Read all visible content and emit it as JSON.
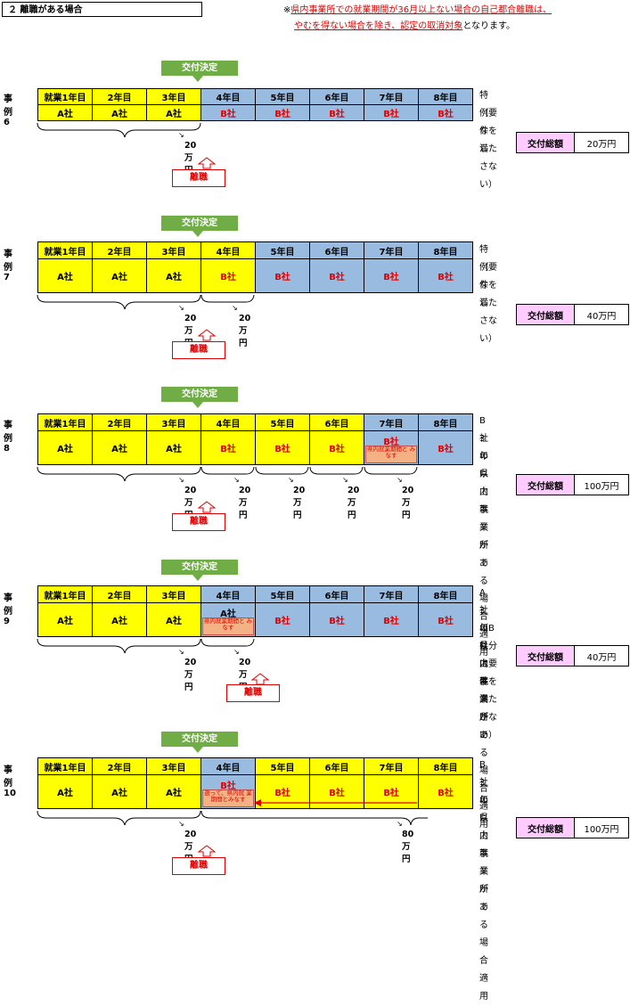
{
  "header": {
    "title": "２ 離職がある場合",
    "note_prefix": "※",
    "note_red1": "県内事業所での就業期間が36月以上ない場合の自己都合離職は、",
    "note_red2": "やむを得ない場合を除き、認定の取消対象",
    "note_suffix": "となります。"
  },
  "badge_label": "交付決定",
  "rishoku_label": "離職",
  "total_label": "交付総額",
  "years": [
    "就業1年目",
    "2年目",
    "3年目",
    "4年目",
    "5年目",
    "6年目",
    "7年目",
    "8年目"
  ],
  "cases": [
    {
      "label": "事例6",
      "companies": [
        "A社",
        "A社",
        "A社",
        "B社",
        "B社",
        "B社",
        "B社",
        "B社"
      ],
      "side": [
        "特例なし",
        "（要件を満たさない）"
      ],
      "amounts": [
        "20万円"
      ],
      "total": "20万円"
    },
    {
      "label": "事例7",
      "companies": [
        "A社",
        "A社",
        "A社",
        "B社",
        "B社",
        "B社",
        "B社",
        "B社"
      ],
      "side": [
        "特例なし",
        "（要件を満たさない）"
      ],
      "amounts": [
        "20万円",
        "20万円"
      ],
      "total": "40万円"
    },
    {
      "label": "事例8",
      "companies": [
        "A社",
        "A社",
        "A社",
        "B社",
        "B社",
        "B社",
        "B社",
        "B社"
      ],
      "sub_note": "県内就業期間と みなす",
      "side": [
        "B社の県内事業所で",
        "3年以上就業がある場合適用"
      ],
      "amounts": [
        "20万円",
        "20万円",
        "20万円",
        "20万円",
        "20万円"
      ],
      "total": "100万円"
    },
    {
      "label": "事例9",
      "companies": [
        "A社",
        "A社",
        "A社",
        "A社",
        "B社",
        "B社",
        "B社",
        "B社"
      ],
      "sub_note": "県内就業期間と みなす",
      "side": [
        "A社の県内事業所で",
        "3年以上就業がある場合適用",
        "（B社分は要件を満たさない）"
      ],
      "amounts": [
        "20万円",
        "20万円"
      ],
      "total": "40万円"
    },
    {
      "label": "事例10",
      "companies": [
        "A社",
        "A社",
        "A社",
        "B社",
        "B社",
        "B社",
        "B社",
        "B社"
      ],
      "sub_note": "遡って、県内就 業期間とみなす",
      "side": [
        "B社の県内事業所で",
        "3年以上就業がある場合適用"
      ],
      "amounts": [
        "20万円",
        "80万円"
      ],
      "total": "100万円"
    }
  ],
  "colors": {
    "yellow": "#ffff00",
    "blue": "#99bbe0",
    "green": "#70ad47",
    "pink": "#ffccff",
    "red": "#e00000"
  }
}
